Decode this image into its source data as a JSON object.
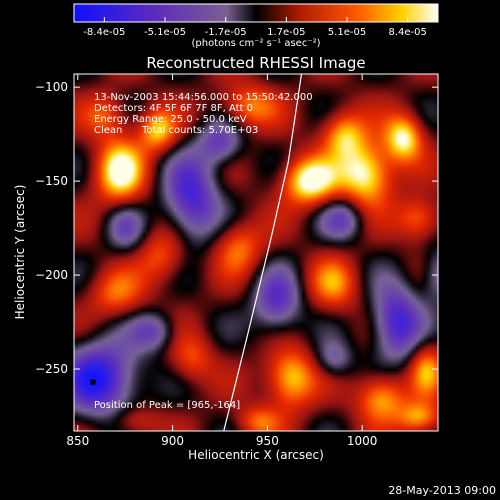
{
  "colorbar": {
    "tick_labels": [
      "-8.4e-05",
      "-5.1e-05",
      "-1.7e-05",
      "1.7e-05",
      "5.1e-05",
      "8.4e-05"
    ],
    "unit_label": "(photons cm⁻² s⁻¹ asec⁻²)",
    "range": [
      -8.4e-05,
      8.4e-05
    ],
    "colormap": "rainbow-hot"
  },
  "annotations": {
    "time_range": "13-Nov-2003 15:44:56.000 to 15:50:42.000",
    "detectors": "Detectors: 4F 5F 6F 7F 8F, Att 0",
    "energy_range": "Energy Range: 25.0 - 50.0 keV",
    "clean": "Clean",
    "total_counts": "Total counts: 5.70E+03",
    "peak_position": "Position of Peak = [965,-164]"
  },
  "footer_date": "28-May-2013 09:00",
  "chart_data": {
    "type": "heatmap",
    "title": "Reconstructed RHESSI Image",
    "xlabel": "Heliocentric X (arcsec)",
    "ylabel": "Heliocentric Y (arcsec)",
    "xlim": [
      848,
      1040
    ],
    "ylim": [
      -283,
      -93
    ],
    "x_ticks": [
      850,
      900,
      950,
      1000
    ],
    "y_ticks": [
      -100,
      -150,
      -200,
      -250
    ],
    "x_tick_labels": [
      "850",
      "900",
      "950",
      "1000"
    ],
    "y_tick_labels": [
      "−100",
      "−150",
      "−200",
      "−250"
    ],
    "limb_curve": [
      [
        927,
        -283
      ],
      [
        940,
        -230
      ],
      [
        952,
        -180
      ],
      [
        961,
        -140
      ],
      [
        968,
        -93
      ]
    ],
    "peak": [
      965,
      -164
    ],
    "blobs": [
      [
        872,
        -145,
        0.95,
        9,
        12
      ],
      [
        892,
        -123,
        0.75,
        7,
        8
      ],
      [
        865,
        -115,
        0.45,
        8,
        8
      ],
      [
        940,
        -110,
        0.6,
        10,
        8
      ],
      [
        972,
        -150,
        1.0,
        10,
        9
      ],
      [
        990,
        -125,
        0.7,
        8,
        9
      ],
      [
        1002,
        -146,
        1.0,
        10,
        12
      ],
      [
        1022,
        -127,
        0.9,
        7,
        9
      ],
      [
        1030,
        -170,
        0.6,
        8,
        8
      ],
      [
        985,
        -205,
        0.55,
        9,
        10
      ],
      [
        962,
        -255,
        0.85,
        9,
        11
      ],
      [
        1010,
        -265,
        0.75,
        9,
        9
      ],
      [
        1034,
        -250,
        0.6,
        6,
        10
      ],
      [
        1030,
        -276,
        0.7,
        8,
        6
      ],
      [
        935,
        -185,
        0.55,
        9,
        10
      ],
      [
        895,
        -190,
        0.5,
        9,
        10
      ],
      [
        870,
        -210,
        0.5,
        10,
        9
      ],
      [
        910,
        -245,
        0.45,
        8,
        9
      ],
      [
        945,
        -278,
        0.5,
        8,
        6
      ],
      [
        880,
        -278,
        0.4,
        9,
        6
      ],
      [
        910,
        -160,
        -0.85,
        10,
        16
      ],
      [
        862,
        -255,
        -1.0,
        14,
        14
      ],
      [
        925,
        -130,
        -0.6,
        8,
        8
      ],
      [
        955,
        -215,
        -0.7,
        9,
        12
      ],
      [
        1018,
        -225,
        -0.9,
        9,
        14
      ],
      [
        990,
        -170,
        -0.55,
        8,
        8
      ],
      [
        875,
        -175,
        -0.45,
        7,
        9
      ],
      [
        1040,
        -200,
        -0.5,
        6,
        10
      ],
      [
        890,
        -230,
        -0.55,
        8,
        7
      ],
      [
        985,
        -245,
        -0.45,
        7,
        7
      ]
    ]
  }
}
